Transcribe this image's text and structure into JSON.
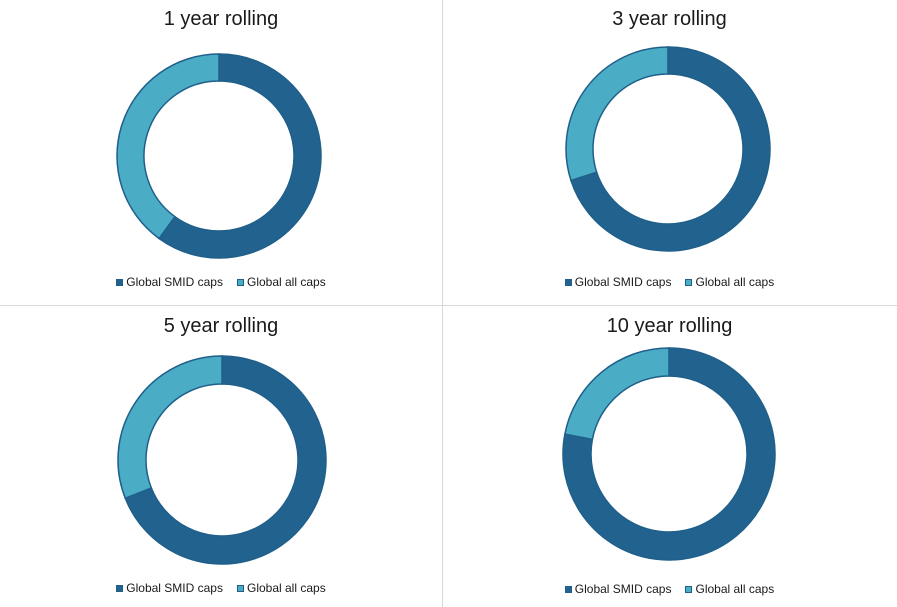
{
  "colors": {
    "smid": "#22628f",
    "allcaps": "#4bacc6",
    "slice_border": "#1f5f8a"
  },
  "chart_data": [
    {
      "type": "pie",
      "title": "1 year rolling",
      "categories": [
        "Global SMID caps",
        "Global all caps"
      ],
      "values": [
        60,
        40
      ]
    },
    {
      "type": "pie",
      "title": "3 year rolling",
      "categories": [
        "Global SMID caps",
        "Global all caps"
      ],
      "values": [
        70,
        30
      ]
    },
    {
      "type": "pie",
      "title": "5 year rolling",
      "categories": [
        "Global SMID caps",
        "Global all caps"
      ],
      "values": [
        69,
        31
      ]
    },
    {
      "type": "pie",
      "title": "10 year rolling",
      "categories": [
        "Global SMID caps",
        "Global all caps"
      ],
      "values": [
        78,
        22
      ]
    }
  ]
}
